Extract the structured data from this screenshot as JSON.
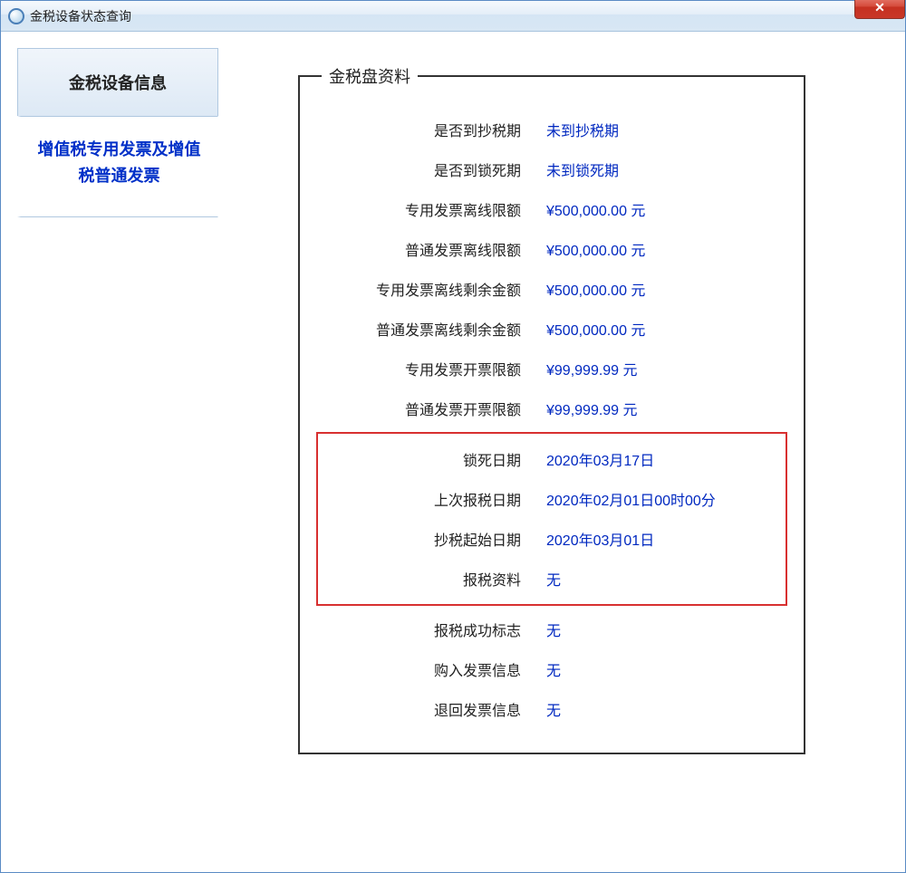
{
  "window": {
    "title": "金税设备状态查询"
  },
  "sidebar": {
    "header": "金税设备信息",
    "items": [
      {
        "label": "增值税专用发票及增值税普通发票",
        "active": true
      }
    ]
  },
  "panel": {
    "legend": "金税盘资料",
    "rows": [
      {
        "label": "是否到抄税期",
        "value": "未到抄税期"
      },
      {
        "label": "是否到锁死期",
        "value": "未到锁死期"
      },
      {
        "label": "专用发票离线限额",
        "value": "¥500,000.00 元"
      },
      {
        "label": "普通发票离线限额",
        "value": "¥500,000.00 元"
      },
      {
        "label": "专用发票离线剩余金额",
        "value": "¥500,000.00 元"
      },
      {
        "label": "普通发票离线剩余金额",
        "value": "¥500,000.00 元"
      },
      {
        "label": "专用发票开票限额",
        "value": "¥99,999.99 元"
      },
      {
        "label": "普通发票开票限额",
        "value": "¥99,999.99 元"
      }
    ],
    "highlight_rows": [
      {
        "label": "锁死日期",
        "value": "2020年03月17日"
      },
      {
        "label": "上次报税日期",
        "value": "2020年02月01日00时00分"
      },
      {
        "label": "抄税起始日期",
        "value": "2020年03月01日"
      },
      {
        "label": "报税资料",
        "value": "无"
      }
    ],
    "rows_after": [
      {
        "label": "报税成功标志",
        "value": "无"
      },
      {
        "label": "购入发票信息",
        "value": "无"
      },
      {
        "label": "退回发票信息",
        "value": "无"
      }
    ]
  },
  "colors": {
    "value_text": "#0028c0",
    "highlight_border": "#d83030",
    "titlebar_gradient_top": "#f5f9fd",
    "titlebar_gradient_bottom": "#d8e7f4",
    "close_btn_bg": "#d54a3a"
  }
}
